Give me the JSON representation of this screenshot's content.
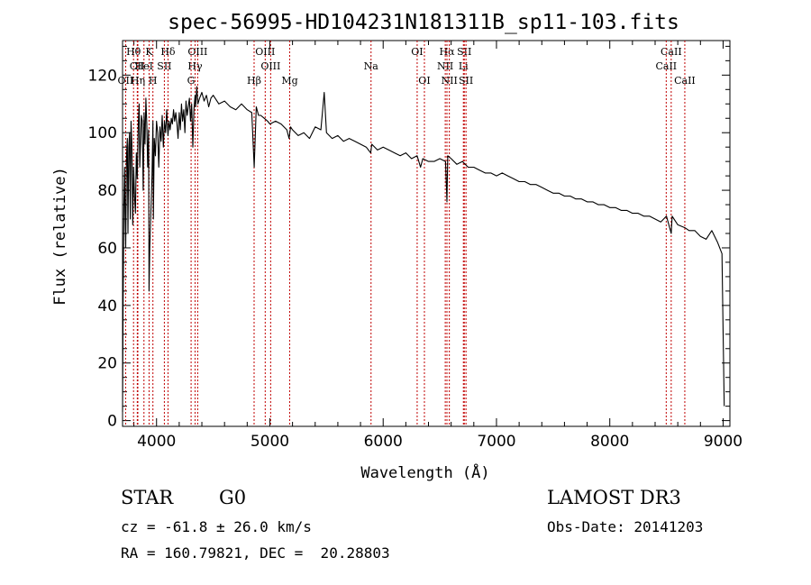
{
  "chart_data": {
    "type": "line",
    "title": "spec-56995-HD104231N181311B_sp11-103.fits",
    "xlabel": "Wavelength (Å)",
    "ylabel": "Flux (relative)",
    "xlim": [
      3700,
      9060
    ],
    "ylim": [
      -2,
      132
    ],
    "xticks": [
      4000,
      5000,
      6000,
      7000,
      8000,
      9000
    ],
    "yticks": [
      0,
      20,
      40,
      60,
      80,
      100,
      120
    ],
    "series": [
      {
        "name": "spectrum",
        "x": [
          3700,
          3705,
          3712,
          3718,
          3722,
          3728,
          3735,
          3742,
          3748,
          3755,
          3762,
          3768,
          3775,
          3782,
          3790,
          3798,
          3806,
          3814,
          3822,
          3830,
          3838,
          3846,
          3852,
          3858,
          3866,
          3874,
          3882,
          3890,
          3898,
          3906,
          3914,
          3922,
          3930,
          3934,
          3940,
          3950,
          3960,
          3968,
          3972,
          3980,
          3990,
          4000,
          4010,
          4020,
          4030,
          4040,
          4050,
          4060,
          4070,
          4080,
          4090,
          4101,
          4110,
          4120,
          4130,
          4140,
          4150,
          4160,
          4170,
          4180,
          4190,
          4200,
          4210,
          4220,
          4230,
          4240,
          4250,
          4260,
          4270,
          4280,
          4290,
          4300,
          4310,
          4320,
          4330,
          4340,
          4345,
          4355,
          4365,
          4380,
          4400,
          4420,
          4440,
          4460,
          4480,
          4500,
          4550,
          4600,
          4650,
          4700,
          4750,
          4800,
          4840,
          4862,
          4880,
          4900,
          4920,
          4950,
          4980,
          5000,
          5050,
          5100,
          5150,
          5170,
          5183,
          5200,
          5250,
          5300,
          5350,
          5400,
          5450,
          5480,
          5500,
          5550,
          5600,
          5650,
          5700,
          5750,
          5800,
          5850,
          5890,
          5900,
          5950,
          6000,
          6050,
          6100,
          6150,
          6200,
          6250,
          6300,
          6330,
          6350,
          6400,
          6450,
          6500,
          6550,
          6563,
          6570,
          6600,
          6650,
          6700,
          6750,
          6800,
          6850,
          6900,
          6950,
          7000,
          7050,
          7100,
          7150,
          7200,
          7250,
          7300,
          7350,
          7400,
          7450,
          7500,
          7550,
          7600,
          7650,
          7700,
          7750,
          7800,
          7850,
          7900,
          7950,
          8000,
          8050,
          8100,
          8150,
          8200,
          8250,
          8300,
          8350,
          8400,
          8450,
          8500,
          8542,
          8550,
          8600,
          8662,
          8700,
          8750,
          8800,
          8850,
          8900,
          8950,
          8990,
          9000,
          9010
        ],
        "y": [
          3,
          40,
          75,
          88,
          72,
          60,
          92,
          98,
          65,
          95,
          100,
          70,
          104,
          96,
          68,
          88,
          78,
          72,
          93,
          84,
          102,
          110,
          88,
          96,
          106,
          104,
          80,
          107,
          96,
          112,
          103,
          88,
          101,
          45,
          60,
          72,
          85,
          104,
          70,
          98,
          92,
          104,
          100,
          88,
          102,
          97,
          106,
          95,
          104,
          100,
          108,
          99,
          104,
          101,
          105,
          103,
          108,
          104,
          107,
          103,
          98,
          107,
          101,
          110,
          104,
          108,
          100,
          111,
          106,
          109,
          112,
          104,
          110,
          95,
          108,
          113,
          109,
          116,
          110,
          112,
          114,
          111,
          113,
          109,
          112,
          113,
          110,
          111,
          109,
          108,
          110,
          108,
          107,
          88,
          109,
          106,
          106,
          105,
          104,
          103,
          104,
          103,
          101,
          98,
          102,
          101,
          99,
          100,
          98,
          102,
          101,
          114,
          100,
          98,
          99,
          97,
          98,
          97,
          96,
          95,
          93,
          96,
          94,
          95,
          94,
          93,
          92,
          93,
          91,
          92,
          88,
          91,
          90,
          90,
          91,
          90,
          76,
          92,
          91,
          89,
          90,
          88,
          88,
          87,
          86,
          86,
          85,
          86,
          85,
          84,
          83,
          83,
          82,
          82,
          81,
          80,
          79,
          79,
          78,
          78,
          77,
          77,
          76,
          76,
          75,
          75,
          74,
          74,
          73,
          73,
          72,
          72,
          71,
          71,
          70,
          69,
          71,
          65,
          71,
          68,
          67,
          66,
          66,
          64,
          63,
          66,
          62,
          58,
          30,
          5
        ]
      }
    ],
    "line_markers": [
      {
        "label": "Hθ",
        "x": 3797,
        "row": 1
      },
      {
        "label": "CII",
        "x": 3830,
        "row": 2
      },
      {
        "label": "OII",
        "x": 3727,
        "row": 3
      },
      {
        "label": "K",
        "x": 3934,
        "row": 1
      },
      {
        "label": "HeI",
        "x": 3889,
        "row": 2
      },
      {
        "label": "Hη",
        "x": 3835,
        "row": 3
      },
      {
        "label": "Hδ",
        "x": 4101,
        "row": 1
      },
      {
        "label": "SII",
        "x": 4069,
        "row": 2
      },
      {
        "label": "H",
        "x": 3968,
        "row": 3
      },
      {
        "label": "OIII",
        "x": 4363,
        "row": 1
      },
      {
        "label": "Hγ",
        "x": 4340,
        "row": 2
      },
      {
        "label": "G",
        "x": 4305,
        "row": 3
      },
      {
        "label": "OIII",
        "x": 4959,
        "row": 1
      },
      {
        "label": "OIII",
        "x": 5007,
        "row": 2
      },
      {
        "label": "Hβ",
        "x": 4861,
        "row": 3
      },
      {
        "label": "Mg",
        "x": 5175,
        "row": 3
      },
      {
        "label": "Na",
        "x": 5893,
        "row": 2
      },
      {
        "label": "OI",
        "x": 6300,
        "row": 1
      },
      {
        "label": "OI",
        "x": 6364,
        "row": 3
      },
      {
        "label": "Hα",
        "x": 6563,
        "row": 1
      },
      {
        "label": "SII",
        "x": 6716,
        "row": 1
      },
      {
        "label": "NII",
        "x": 6548,
        "row": 2
      },
      {
        "label": "Li",
        "x": 6708,
        "row": 2
      },
      {
        "label": "NII",
        "x": 6584,
        "row": 3
      },
      {
        "label": "SII",
        "x": 6731,
        "row": 3
      },
      {
        "label": "CaII",
        "x": 8542,
        "row": 1
      },
      {
        "label": "CaII",
        "x": 8498,
        "row": 2
      },
      {
        "label": "CaII",
        "x": 8662,
        "row": 3
      }
    ],
    "marker_color": "#c00000",
    "grid": false
  },
  "info": {
    "object_class": "STAR",
    "subclass": "G0",
    "survey": "LAMOST DR3",
    "cz": "cz = -61.8 ± 26.0 km/s",
    "obs_date": "Obs-Date: 20141203",
    "radec": "RA = 160.79821, DEC =  20.28803"
  }
}
